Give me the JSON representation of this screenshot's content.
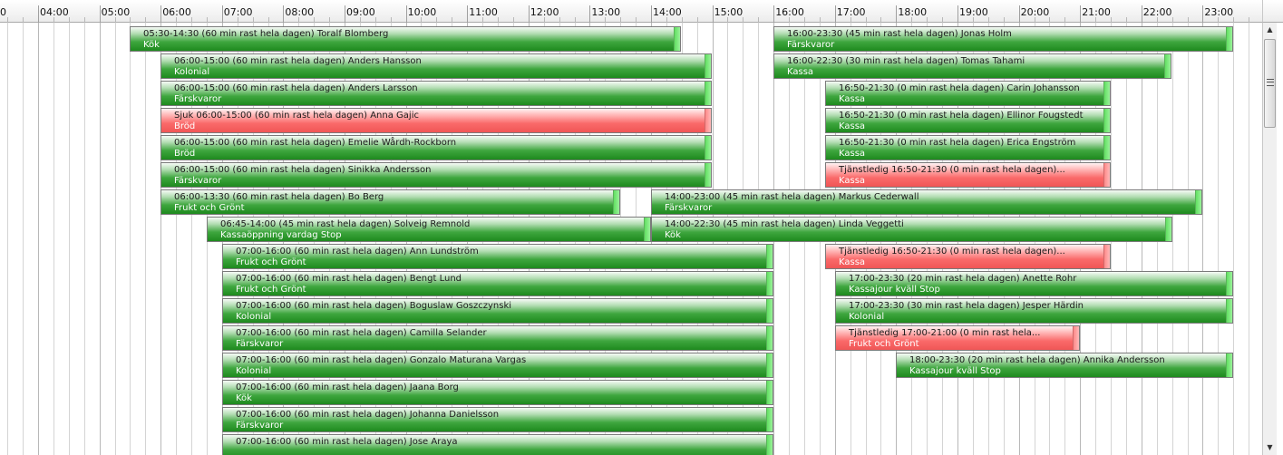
{
  "timeline": {
    "hours": [
      "0",
      "04:00",
      "05:00",
      "06:00",
      "07:00",
      "08:00",
      "09:00",
      "10:00",
      "11:00",
      "12:00",
      "13:00",
      "14:00",
      "15:00",
      "16:00",
      "17:00",
      "18:00",
      "19:00",
      "20:00",
      "21:00",
      "22:00",
      "23:00"
    ],
    "shifts": [
      {
        "line1": "05:30-14:30 (60 min rast hela dagen) Toralf Blomberg",
        "line2": "Kök",
        "start": "05:30",
        "end": "14:30",
        "row": 0,
        "status": "normal"
      },
      {
        "line1": "16:00-23:30 (45 min rast hela dagen) Jonas Holm",
        "line2": "Färskvaror",
        "start": "16:00",
        "end": "23:30",
        "row": 0,
        "status": "normal"
      },
      {
        "line1": "06:00-15:00 (60 min rast hela dagen) Anders Hansson",
        "line2": "Kolonial",
        "start": "06:00",
        "end": "15:00",
        "row": 1,
        "status": "normal"
      },
      {
        "line1": "16:00-22:30 (30 min rast hela dagen) Tomas Tahami",
        "line2": "Kassa",
        "start": "16:00",
        "end": "22:30",
        "row": 1,
        "status": "normal"
      },
      {
        "line1": "06:00-15:00 (60 min rast hela dagen) Anders Larsson",
        "line2": "Färskvaror",
        "start": "06:00",
        "end": "15:00",
        "row": 2,
        "status": "normal"
      },
      {
        "line1": "16:50-21:30 (0 min rast hela dagen) Carin Johansson",
        "line2": "Kassa",
        "start": "16:50",
        "end": "21:30",
        "row": 2,
        "status": "normal"
      },
      {
        "line1": "Sjuk 06:00-15:00 (60 min rast hela dagen) Anna Gajic",
        "line2": "Bröd",
        "start": "06:00",
        "end": "15:00",
        "row": 3,
        "status": "absent"
      },
      {
        "line1": "16:50-21:30 (0 min rast hela dagen) Ellinor Fougstedt",
        "line2": "Kassa",
        "start": "16:50",
        "end": "21:30",
        "row": 3,
        "status": "normal"
      },
      {
        "line1": "06:00-15:00 (60 min rast hela dagen) Emelie Wårdh-Rockborn",
        "line2": "Bröd",
        "start": "06:00",
        "end": "15:00",
        "row": 4,
        "status": "normal"
      },
      {
        "line1": "16:50-21:30 (0 min rast hela dagen) Erica Engström",
        "line2": "Kassa",
        "start": "16:50",
        "end": "21:30",
        "row": 4,
        "status": "normal"
      },
      {
        "line1": "06:00-15:00 (60 min rast hela dagen) Sinikka Andersson",
        "line2": "Färskvaror",
        "start": "06:00",
        "end": "15:00",
        "row": 5,
        "status": "normal"
      },
      {
        "line1": "Tjänstledig 16:50-21:30 (0 min rast hela dagen)...",
        "line2": "Kassa",
        "start": "16:50",
        "end": "21:30",
        "row": 5,
        "status": "absent"
      },
      {
        "line1": "06:00-13:30 (60 min rast hela dagen) Bo Berg",
        "line2": "Frukt och Grönt",
        "start": "06:00",
        "end": "13:30",
        "row": 6,
        "status": "normal"
      },
      {
        "line1": "14:00-23:00 (45 min rast hela dagen) Markus  Cederwall",
        "line2": "Färskvaror",
        "start": "14:00",
        "end": "23:00",
        "row": 6,
        "status": "normal"
      },
      {
        "line1": "06:45-14:00 (45 min rast hela dagen) Solveig Remnold",
        "line2": "Kassaöppning vardag Stop",
        "start": "06:45",
        "end": "14:00",
        "row": 7,
        "status": "normal"
      },
      {
        "line1": "14:00-22:30 (45 min rast hela dagen) Linda Veggetti",
        "line2": "Kök",
        "start": "14:00",
        "end": "22:30",
        "row": 7,
        "status": "normal"
      },
      {
        "line1": "07:00-16:00 (60 min rast hela dagen) Ann Lundström",
        "line2": "Frukt och Grönt",
        "start": "07:00",
        "end": "16:00",
        "row": 8,
        "status": "normal"
      },
      {
        "line1": "Tjänstledig 16:50-21:30 (0 min rast hela dagen)...",
        "line2": "Kassa",
        "start": "16:50",
        "end": "21:30",
        "row": 8,
        "status": "absent"
      },
      {
        "line1": "07:00-16:00 (60 min rast hela dagen) Bengt Lund",
        "line2": "Frukt och Grönt",
        "start": "07:00",
        "end": "16:00",
        "row": 9,
        "status": "normal"
      },
      {
        "line1": "17:00-23:30 (20 min rast hela dagen) Anette Rohr",
        "line2": "Kassajour kväll Stop",
        "start": "17:00",
        "end": "23:30",
        "row": 9,
        "status": "normal"
      },
      {
        "line1": "07:00-16:00 (60 min rast hela dagen) Boguslaw Goszczynski",
        "line2": "Kolonial",
        "start": "07:00",
        "end": "16:00",
        "row": 10,
        "status": "normal"
      },
      {
        "line1": "17:00-23:30 (30 min rast hela dagen) Jesper Härdin",
        "line2": "Kolonial",
        "start": "17:00",
        "end": "23:30",
        "row": 10,
        "status": "normal"
      },
      {
        "line1": "07:00-16:00 (60 min rast hela dagen) Camilla Selander",
        "line2": "Färskvaror",
        "start": "07:00",
        "end": "16:00",
        "row": 11,
        "status": "normal"
      },
      {
        "line1": "Tjänstledig 17:00-21:00 (0 min rast hela...",
        "line2": "Frukt och Grönt",
        "start": "17:00",
        "end": "21:00",
        "row": 11,
        "status": "absent"
      },
      {
        "line1": "07:00-16:00 (60 min rast hela dagen) Gonzalo Maturana Vargas",
        "line2": "Kolonial",
        "start": "07:00",
        "end": "16:00",
        "row": 12,
        "status": "normal"
      },
      {
        "line1": "18:00-23:30 (20 min rast hela dagen) Annika Andersson",
        "line2": "Kassajour kväll Stop",
        "start": "18:00",
        "end": "23:30",
        "row": 12,
        "status": "normal"
      },
      {
        "line1": "07:00-16:00 (60 min rast hela dagen) Jaana Borg",
        "line2": "Kök",
        "start": "07:00",
        "end": "16:00",
        "row": 13,
        "status": "normal"
      },
      {
        "line1": "07:00-16:00 (60 min rast hela dagen) Johanna Danielsson",
        "line2": "Färskvaror",
        "start": "07:00",
        "end": "16:00",
        "row": 14,
        "status": "normal"
      },
      {
        "line1": "07:00-16:00 (60 min rast hela dagen) Jose Araya",
        "line2": "",
        "start": "07:00",
        "end": "16:00",
        "row": 15,
        "status": "normal"
      }
    ]
  },
  "scrollbar": {
    "up_icon": "arrow-up-icon",
    "down_icon": "arrow-down-icon",
    "position": 0.0
  },
  "colors": {
    "normal_shift": "#2e9a2e",
    "absent_shift": "#f46464"
  }
}
